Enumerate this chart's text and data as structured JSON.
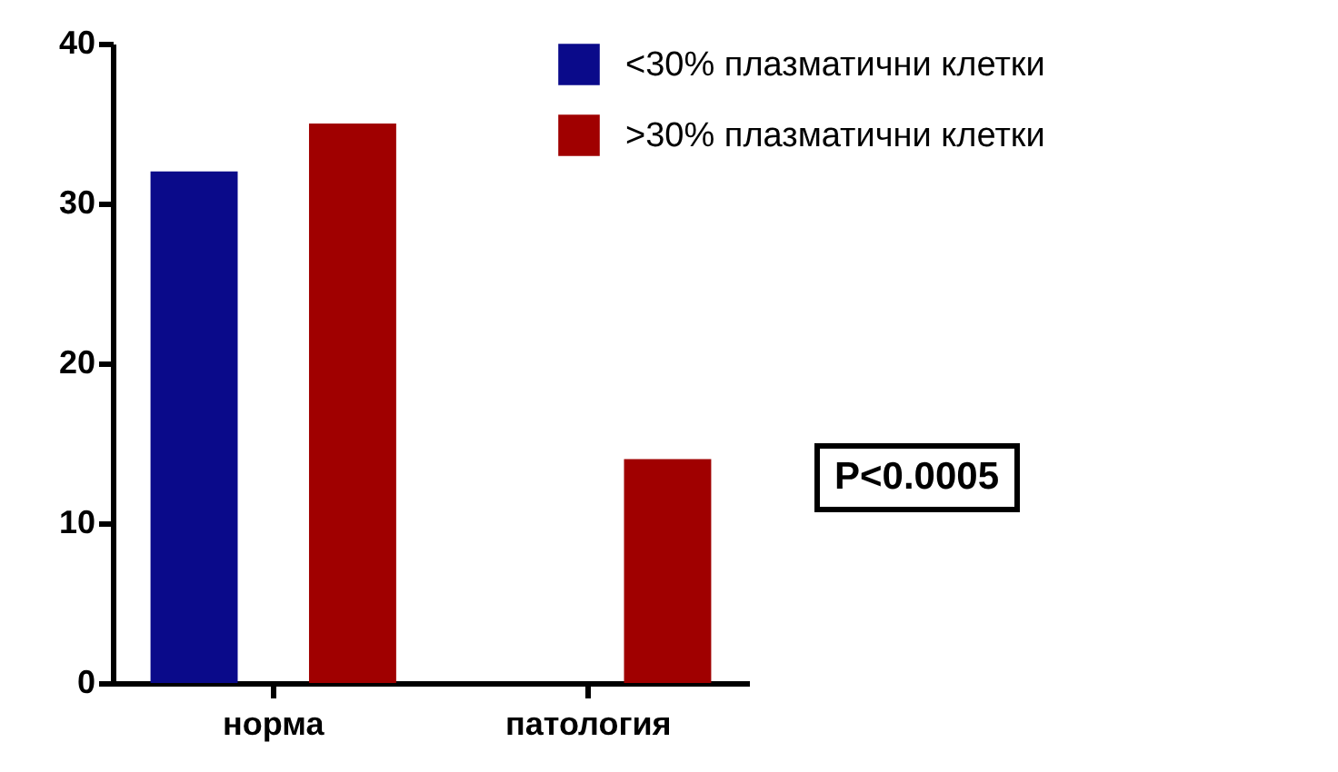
{
  "chart_data": {
    "type": "bar",
    "categories": [
      "норма",
      "патология"
    ],
    "series": [
      {
        "name": "<30% плазматични клетки",
        "color": "#0a0a8a",
        "values": [
          32,
          0
        ]
      },
      {
        "name": ">30% плазматични клетки",
        "color": "#a00000",
        "values": [
          35,
          14
        ]
      }
    ],
    "ylim": [
      0,
      40
    ],
    "yticks": [
      0,
      10,
      20,
      30,
      40
    ],
    "legend": "top right",
    "annotations": [
      "P<0.0005"
    ]
  }
}
